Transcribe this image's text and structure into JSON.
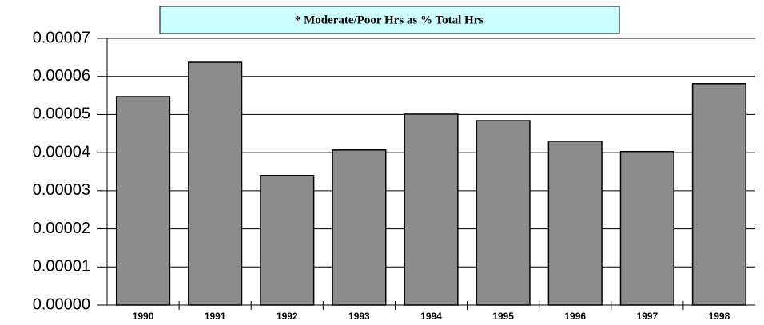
{
  "chart_data": {
    "type": "bar",
    "title": "* Moderate/Poor Hrs as % Total Hrs",
    "categories": [
      "1990",
      "1991",
      "1992",
      "1993",
      "1994",
      "1995",
      "1996",
      "1997",
      "1998"
    ],
    "values": [
      5.47e-05,
      6.37e-05,
      3.4e-05,
      4.07e-05,
      5.01e-05,
      4.84e-05,
      4.3e-05,
      4.03e-05,
      5.81e-05
    ],
    "color": "#8c8c8c",
    "ylim": [
      0,
      7e-05
    ],
    "yticks": [
      {
        "value": 0,
        "label": "0.00000"
      },
      {
        "value": 1e-05,
        "label": "0.00001"
      },
      {
        "value": 2e-05,
        "label": "0.00002"
      },
      {
        "value": 3e-05,
        "label": "0.00003"
      },
      {
        "value": 4e-05,
        "label": "0.00004"
      },
      {
        "value": 5e-05,
        "label": "0.00005"
      },
      {
        "value": 6e-05,
        "label": "0.00006"
      },
      {
        "value": 7e-05,
        "label": "0.00007"
      }
    ],
    "grid": true
  }
}
